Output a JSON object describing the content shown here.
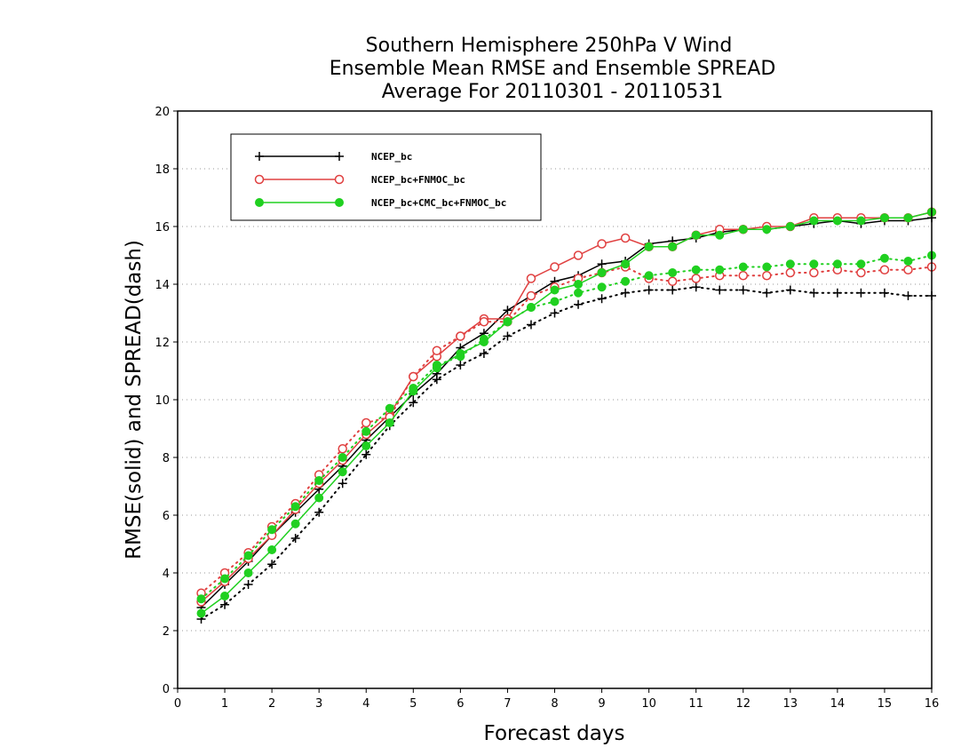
{
  "chart_data": {
    "type": "line",
    "title": [
      "Southern Hemisphere 250hPa V Wind",
      "Ensemble Mean RMSE and Ensemble SPREAD",
      "Average For 20110301 - 20110531"
    ],
    "xlabel": "Forecast days",
    "ylabel": "RMSE(solid) and SPREAD(dash)",
    "xlim": [
      0,
      16
    ],
    "ylim": [
      0,
      20
    ],
    "xticks": [
      "0",
      "1",
      "2",
      "3",
      "4",
      "5",
      "6",
      "7",
      "8",
      "9",
      "10",
      "11",
      "12",
      "13",
      "14",
      "15",
      "16"
    ],
    "yticks": [
      "0",
      "2",
      "4",
      "6",
      "8",
      "10",
      "12",
      "14",
      "16",
      "18",
      "20"
    ],
    "grid": true,
    "legend_position": "top-left",
    "x": [
      0.5,
      1,
      1.5,
      2,
      2.5,
      3,
      3.5,
      4,
      4.5,
      5,
      5.5,
      6,
      6.5,
      7,
      7.5,
      8,
      8.5,
      9,
      9.5,
      10,
      10.5,
      11,
      11.5,
      12,
      12.5,
      13,
      13.5,
      14,
      14.5,
      15,
      15.5,
      16
    ],
    "series": [
      {
        "name": "NCEP_bc",
        "color": "#000000",
        "marker": "plus",
        "rmse": [
          2.8,
          3.6,
          4.4,
          5.3,
          6.1,
          6.9,
          7.7,
          8.6,
          9.4,
          10.2,
          10.9,
          11.8,
          12.3,
          13.1,
          13.6,
          14.1,
          14.3,
          14.7,
          14.8,
          15.4,
          15.5,
          15.6,
          15.8,
          15.9,
          15.9,
          16.0,
          16.1,
          16.2,
          16.1,
          16.2,
          16.2,
          16.3
        ],
        "spread": [
          2.4,
          2.9,
          3.6,
          4.3,
          5.2,
          6.1,
          7.1,
          8.1,
          9.1,
          9.9,
          10.7,
          11.2,
          11.6,
          12.2,
          12.6,
          13.0,
          13.3,
          13.5,
          13.7,
          13.8,
          13.8,
          13.9,
          13.8,
          13.8,
          13.7,
          13.8,
          13.7,
          13.7,
          13.7,
          13.7,
          13.6,
          13.6
        ]
      },
      {
        "name": "NCEP_bc+FNMOC_bc",
        "color": "#e04040",
        "marker": "open-circle",
        "rmse": [
          3.0,
          3.7,
          4.5,
          5.3,
          6.2,
          7.1,
          7.9,
          8.8,
          9.5,
          10.8,
          11.5,
          12.2,
          12.8,
          12.8,
          14.2,
          14.6,
          15.0,
          15.4,
          15.6,
          15.3,
          15.3,
          15.7,
          15.9,
          15.9,
          16.0,
          16.0,
          16.3,
          16.3,
          16.3,
          16.3,
          16.3,
          16.5
        ],
        "spread": [
          3.3,
          4.0,
          4.7,
          5.6,
          6.4,
          7.4,
          8.3,
          9.2,
          9.4,
          10.8,
          11.7,
          12.2,
          12.7,
          12.7,
          13.6,
          13.9,
          14.2,
          14.4,
          14.6,
          14.2,
          14.1,
          14.2,
          14.3,
          14.3,
          14.3,
          14.4,
          14.4,
          14.5,
          14.4,
          14.5,
          14.5,
          14.6
        ]
      },
      {
        "name": "NCEP_bc+CMC_bc+FNMOC_bc",
        "color": "#20d020",
        "marker": "filled-circle",
        "rmse": [
          2.6,
          3.2,
          4.0,
          4.8,
          5.7,
          6.6,
          7.5,
          8.4,
          9.2,
          10.3,
          11.1,
          11.6,
          12.0,
          12.7,
          13.2,
          13.8,
          14.0,
          14.4,
          14.7,
          15.3,
          15.3,
          15.7,
          15.7,
          15.9,
          15.9,
          16.0,
          16.2,
          16.2,
          16.2,
          16.3,
          16.3,
          16.5
        ],
        "spread": [
          3.1,
          3.8,
          4.6,
          5.5,
          6.3,
          7.2,
          8.0,
          8.9,
          9.7,
          10.4,
          11.2,
          11.5,
          12.1,
          12.7,
          13.2,
          13.4,
          13.7,
          13.9,
          14.1,
          14.3,
          14.4,
          14.5,
          14.5,
          14.6,
          14.6,
          14.7,
          14.7,
          14.7,
          14.7,
          14.9,
          14.8,
          15.0
        ]
      }
    ]
  }
}
